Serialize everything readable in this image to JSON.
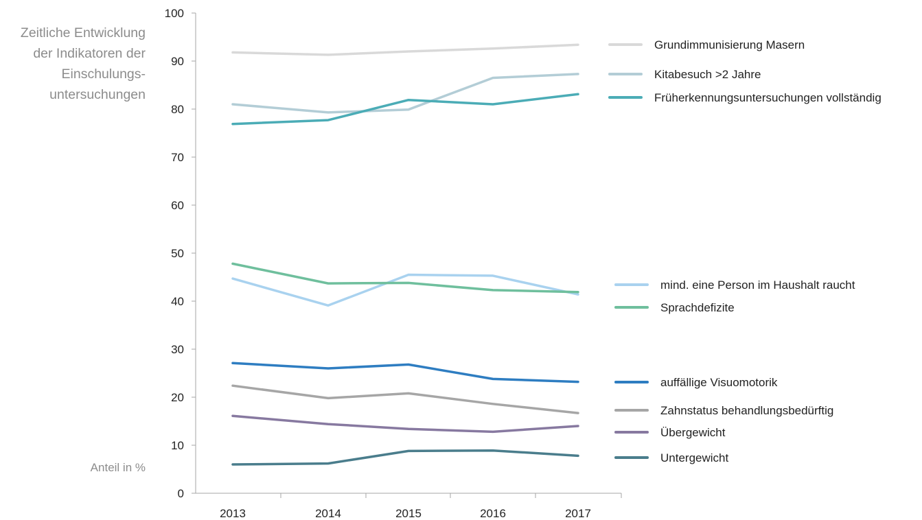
{
  "chart_data": {
    "type": "line",
    "title_lines": [
      "Zeitliche Entwicklung",
      "der Indikatoren der",
      "Einschulungs-",
      "untersuchungen"
    ],
    "ylabel": "Anteil in %",
    "xlabel": "",
    "categories": [
      "2013",
      "2014",
      "2015",
      "2016",
      "2017"
    ],
    "ylim": [
      0,
      100
    ],
    "yticks": [
      0,
      10,
      20,
      30,
      40,
      50,
      60,
      70,
      80,
      90,
      100
    ],
    "grid": false,
    "legend_placement": "right",
    "series": [
      {
        "name": "Grundimmunisierung Masern",
        "color": "#d9d9d9",
        "values": [
          91.8,
          91.3,
          92.0,
          92.6,
          93.4
        ]
      },
      {
        "name": "Kitabesuch >2 Jahre",
        "color": "#b3cdd6",
        "values": [
          81.0,
          79.3,
          79.9,
          86.5,
          87.3
        ]
      },
      {
        "name": "Früherkennungsuntersuchungen vollständig",
        "color": "#4bacb6",
        "values": [
          76.9,
          77.7,
          81.9,
          81.0,
          83.1
        ]
      },
      {
        "name": "mind. eine Person im Haushalt raucht",
        "color": "#a9d2ef",
        "values": [
          44.7,
          39.1,
          45.5,
          45.3,
          41.4
        ]
      },
      {
        "name": "Sprachdefizite",
        "color": "#6fbf9d",
        "values": [
          47.8,
          43.7,
          43.8,
          42.3,
          41.9
        ]
      },
      {
        "name": "auffällige Visuomotorik",
        "color": "#2e7dc1",
        "values": [
          27.1,
          26.0,
          26.8,
          23.8,
          23.2
        ]
      },
      {
        "name": "Zahnstatus behandlungsbedürftig",
        "color": "#a6a6a6",
        "values": [
          22.4,
          19.8,
          20.8,
          18.6,
          16.7
        ]
      },
      {
        "name": "Übergewicht",
        "color": "#8779a0",
        "values": [
          16.1,
          14.4,
          13.4,
          12.8,
          14.0
        ]
      },
      {
        "name": "Untergewicht",
        "color": "#4a7d8c",
        "values": [
          6.0,
          6.2,
          8.8,
          8.9,
          7.8
        ]
      }
    ]
  }
}
